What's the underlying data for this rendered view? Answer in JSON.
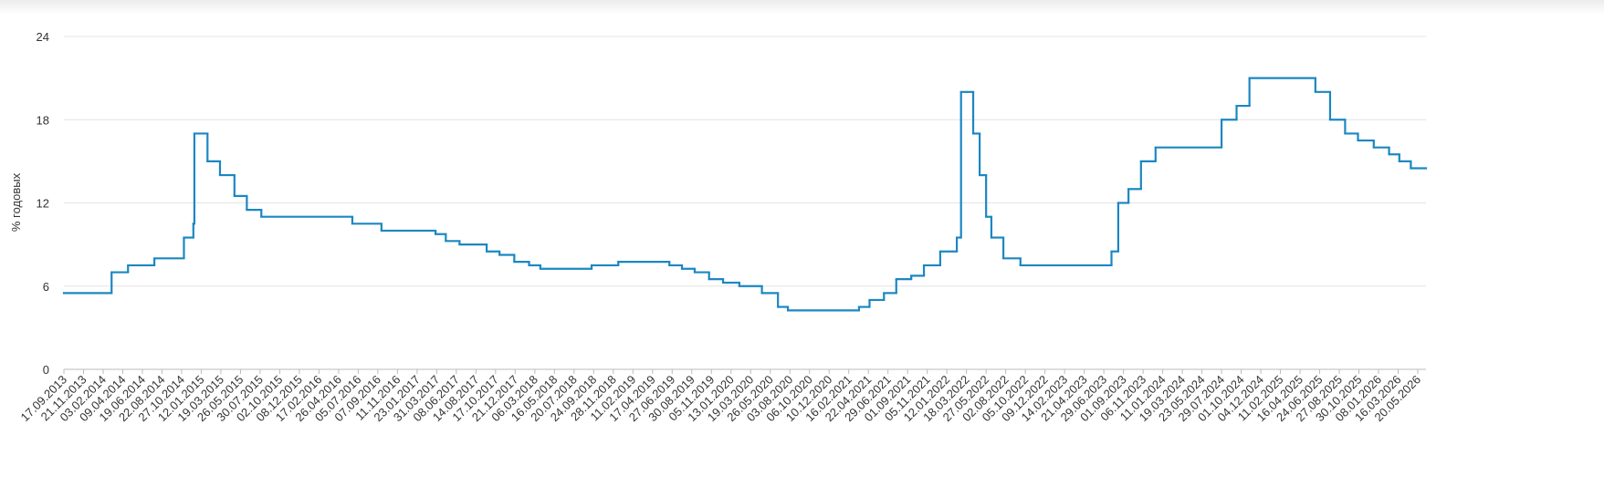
{
  "chart_data": {
    "type": "step-line",
    "y_label": "% годовых",
    "ylim": [
      0,
      24
    ],
    "yticks": [
      0,
      6,
      12,
      18,
      24
    ],
    "grid": true,
    "xticks": [
      "17.09.2013",
      "21.11.2013",
      "03.02.2014",
      "09.04.2014",
      "19.06.2014",
      "22.08.2014",
      "27.10.2014",
      "12.01.2015",
      "19.03.2015",
      "26.05.2015",
      "30.07.2015",
      "02.10.2015",
      "08.12.2015",
      "17.02.2016",
      "26.04.2016",
      "05.07.2016",
      "07.09.2016",
      "11.11.2016",
      "23.01.2017",
      "31.03.2017",
      "08.06.2017",
      "14.08.2017",
      "17.10.2017",
      "21.12.2017",
      "06.03.2018",
      "16.05.2018",
      "20.07.2018",
      "24.09.2018",
      "28.11.2018",
      "11.02.2019",
      "17.04.2019",
      "27.06.2019",
      "30.08.2019",
      "05.11.2019",
      "13.01.2020",
      "19.03.2020",
      "26.05.2020",
      "03.08.2020",
      "06.10.2020",
      "10.12.2020",
      "16.02.2021",
      "22.04.2021",
      "29.06.2021",
      "01.09.2021",
      "05.11.2021",
      "12.01.2022",
      "18.03.2022",
      "27.05.2022",
      "02.08.2022",
      "05.10.2022",
      "09.12.2022",
      "14.02.2023",
      "21.04.2023",
      "29.06.2023",
      "01.09.2023",
      "06.11.2023",
      "11.01.2024",
      "19.03.2024",
      "23.05.2024",
      "29.07.2024",
      "01.10.2024",
      "04.12.2024",
      "11.02.2025",
      "16.04.2025",
      "24.06.2025",
      "27.08.2025",
      "30.10.2025",
      "08.01.2026",
      "16.03.2026",
      "20.05.2026"
    ],
    "series": [
      {
        "color": "#1b87c2",
        "x": [
          "17.09.2013",
          "03.03.2014",
          "28.04.2014",
          "28.07.2014",
          "05.11.2014",
          "12.12.2014",
          "16.12.2014",
          "02.02.2015",
          "16.03.2015",
          "05.05.2015",
          "16.06.2015",
          "03.08.2015",
          "14.06.2016",
          "19.09.2016",
          "27.03.2017",
          "02.05.2017",
          "19.06.2017",
          "18.09.2017",
          "30.10.2017",
          "18.12.2017",
          "12.02.2018",
          "26.03.2018",
          "17.09.2018",
          "17.12.2018",
          "17.06.2019",
          "29.07.2019",
          "09.09.2019",
          "28.10.2019",
          "16.12.2019",
          "10.02.2020",
          "27.04.2020",
          "22.06.2020",
          "27.07.2020",
          "22.03.2021",
          "26.04.2021",
          "15.06.2021",
          "26.07.2021",
          "13.09.2021",
          "25.10.2021",
          "20.12.2021",
          "14.02.2022",
          "28.02.2022",
          "11.04.2022",
          "04.05.2022",
          "27.05.2022",
          "14.06.2022",
          "25.07.2022",
          "19.09.2022",
          "24.07.2023",
          "15.08.2023",
          "18.09.2023",
          "30.10.2023",
          "18.12.2023",
          "29.07.2024",
          "16.09.2024",
          "28.10.2024",
          "09.06.2025",
          "28.07.2025",
          "15.09.2025",
          "27.10.2025",
          "22.12.2025",
          "13.02.2026",
          "20.03.2026",
          "27.04.2026"
        ],
        "values": [
          5.5,
          7,
          7.5,
          8,
          9.5,
          10.5,
          17,
          15,
          14,
          12.5,
          11.5,
          11,
          10.5,
          10,
          9.75,
          9.25,
          9,
          8.5,
          8.25,
          7.75,
          7.5,
          7.25,
          7.5,
          7.75,
          7.5,
          7.25,
          7,
          6.5,
          6.25,
          6,
          5.5,
          4.5,
          4.25,
          4.5,
          5,
          5.5,
          6.5,
          6.75,
          7.5,
          8.5,
          9.5,
          20,
          17,
          14,
          11,
          9.5,
          8,
          7.5,
          8.5,
          12,
          13,
          15,
          16,
          18,
          19,
          21,
          20,
          18,
          17,
          16.5,
          16,
          15.5,
          15,
          14.5
        ]
      }
    ]
  }
}
